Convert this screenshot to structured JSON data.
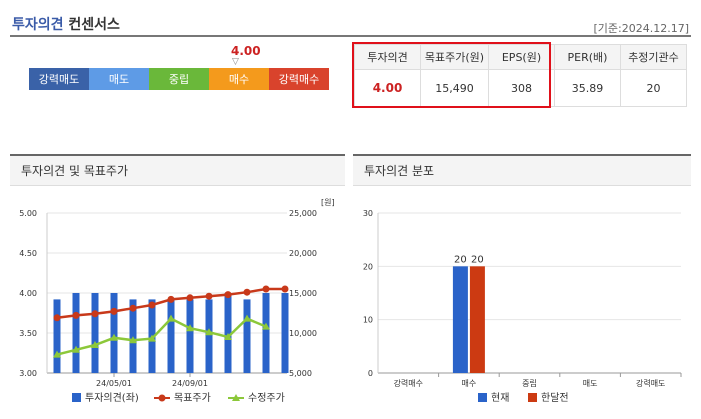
{
  "header": {
    "title_part1": "투자의견",
    "title_part2": "컨센서스",
    "as_of": "[기준:2024.12.17]"
  },
  "scale": {
    "current_value": "4.00",
    "marker": "▽",
    "levels": [
      {
        "label": "강력매도",
        "color": "#3a62a8"
      },
      {
        "label": "매도",
        "color": "#5e9be6"
      },
      {
        "label": "중립",
        "color": "#6ab83a"
      },
      {
        "label": "매수",
        "color": "#f49a1c"
      },
      {
        "label": "강력매수",
        "color": "#d9432c"
      }
    ]
  },
  "summary_table": {
    "headers": [
      "투자의견",
      "목표주가(원)",
      "EPS(원)",
      "PER(배)",
      "추정기관수"
    ],
    "values": [
      "4.00",
      "15,490",
      "308",
      "35.89",
      "20"
    ]
  },
  "left_panel": {
    "title": "투자의견 및 목표주가"
  },
  "right_panel": {
    "title": "투자의견 분포"
  },
  "chart_data": [
    {
      "type": "bar",
      "title": "투자의견 및 목표주가",
      "y_left_ticks": [
        "5.00",
        "4.50",
        "4.00",
        "3.50",
        "3.00"
      ],
      "y_left_range": [
        3.0,
        5.0
      ],
      "y_right_ticks": [
        "25,000",
        "20,000",
        "15,000",
        "10,000",
        "5,000"
      ],
      "y_right_range": [
        5000,
        25000
      ],
      "y_right_unit": "[원]",
      "x_tick_labels": [
        "24/05/01",
        "24/09/01"
      ],
      "grid": true,
      "legend_position": "bottom",
      "series": [
        {
          "name": "투자의견(좌)",
          "type": "bar",
          "color": "#2a63c9",
          "values": [
            3.92,
            4.0,
            4.0,
            4.0,
            3.92,
            3.92,
            3.92,
            3.92,
            3.92,
            4.0,
            3.92,
            4.0,
            4.0
          ]
        },
        {
          "name": "목표주가",
          "type": "line",
          "color": "#c8391a",
          "values": [
            11900,
            12200,
            12400,
            12700,
            13100,
            13500,
            14200,
            14400,
            14600,
            14800,
            15100,
            15500,
            15500
          ]
        },
        {
          "name": "수정주가",
          "type": "line",
          "color": "#8cc83a",
          "values": [
            7300,
            7900,
            8500,
            9400,
            9100,
            9300,
            11800,
            10600,
            10100,
            9500,
            11800,
            10800,
            null
          ]
        }
      ]
    },
    {
      "type": "bar",
      "title": "투자의견 분포",
      "categories": [
        "강력매수",
        "매수",
        "중립",
        "매도",
        "강력매도"
      ],
      "y_ticks": [
        "30",
        "20",
        "10",
        "0"
      ],
      "ylim": [
        0,
        30
      ],
      "legend_position": "bottom",
      "series": [
        {
          "name": "현재",
          "color": "#2a63c9",
          "values": [
            0,
            20,
            0,
            0,
            0
          ],
          "labels": [
            "",
            "20",
            "",
            "",
            ""
          ]
        },
        {
          "name": "한달전",
          "color": "#cc3a12",
          "values": [
            0,
            20,
            0,
            0,
            0
          ],
          "labels": [
            "",
            "20",
            "",
            "",
            ""
          ]
        }
      ]
    }
  ]
}
